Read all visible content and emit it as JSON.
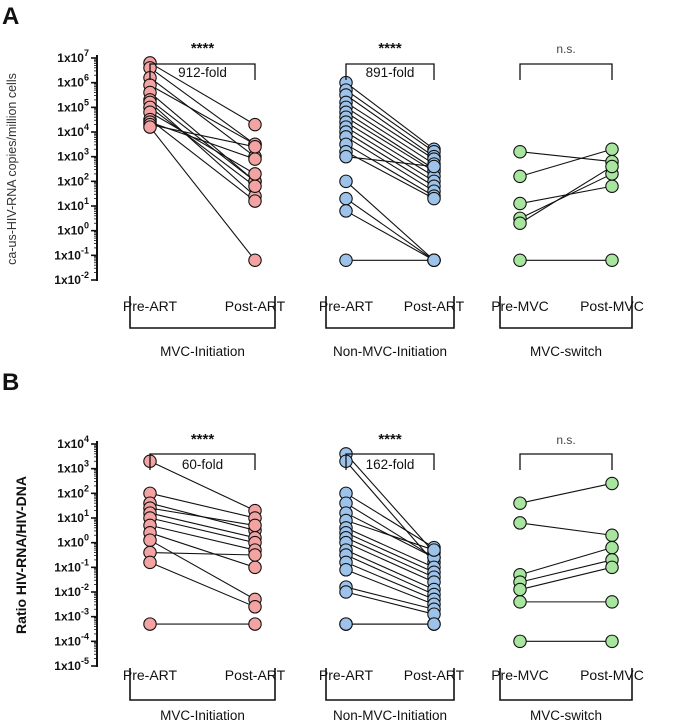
{
  "chart_data": [
    {
      "type": "scatter",
      "panel_letter": "A",
      "ylabel": "ca-us-HIV-RNA copies/million cells",
      "yscale": "log",
      "ylim_exp": [
        -2,
        7
      ],
      "y_ticks": [
        {
          "base": "1x10",
          "exp": "7"
        },
        {
          "base": "1x10",
          "exp": "6"
        },
        {
          "base": "1x10",
          "exp": "5"
        },
        {
          "base": "1x10",
          "exp": "4"
        },
        {
          "base": "1x10",
          "exp": "3"
        },
        {
          "base": "1x10",
          "exp": "2"
        },
        {
          "base": "1x10",
          "exp": "1"
        },
        {
          "base": "1x10",
          "exp": "0"
        },
        {
          "base": "1x10",
          "exp": "-1"
        },
        {
          "base": "1x10",
          "exp": "-2"
        }
      ],
      "groups": [
        {
          "name": "MVC-Initiation",
          "categories": [
            "Pre-ART",
            "Post-ART"
          ],
          "color": "#f4a3a3",
          "significance": "****",
          "fold": "912-fold",
          "pairs": [
            [
              6.8,
              4.3
            ],
            [
              6.6,
              3.5
            ],
            [
              6.2,
              3.0
            ],
            [
              5.9,
              3.5
            ],
            [
              5.6,
              2.0
            ],
            [
              5.3,
              2.0
            ],
            [
              5.2,
              1.4
            ],
            [
              5.0,
              1.8
            ],
            [
              4.8,
              2.3
            ],
            [
              4.5,
              1.2
            ],
            [
              4.4,
              2.9
            ],
            [
              4.3,
              3.4
            ],
            [
              4.2,
              -1.2
            ]
          ]
        },
        {
          "name": "Non-MVC-Initiation",
          "categories": [
            "Pre-ART",
            "Post-ART"
          ],
          "color": "#9dc3ea",
          "significance": "****",
          "fold": "891-fold",
          "pairs": [
            [
              6.0,
              3.3
            ],
            [
              5.7,
              3.2
            ],
            [
              5.5,
              3.0
            ],
            [
              5.2,
              2.9
            ],
            [
              5.0,
              2.7
            ],
            [
              4.8,
              2.5
            ],
            [
              4.6,
              2.4
            ],
            [
              4.4,
              2.2
            ],
            [
              4.2,
              2.0
            ],
            [
              4.0,
              1.8
            ],
            [
              3.8,
              1.6
            ],
            [
              3.5,
              1.4
            ],
            [
              3.2,
              1.3
            ],
            [
              3.0,
              2.6
            ],
            [
              2.0,
              -1.2
            ],
            [
              1.3,
              -1.2
            ],
            [
              0.8,
              -1.2
            ],
            [
              -1.2,
              -1.2
            ]
          ]
        },
        {
          "name": "MVC-switch",
          "categories": [
            "Pre-MVC",
            "Post-MVC"
          ],
          "color": "#a8e6a0",
          "significance": "n.s.",
          "fold": "",
          "pairs": [
            [
              3.2,
              2.8
            ],
            [
              2.2,
              3.3
            ],
            [
              1.1,
              1.8
            ],
            [
              0.5,
              2.3
            ],
            [
              0.3,
              2.6
            ],
            [
              -1.2,
              -1.2
            ]
          ]
        }
      ]
    },
    {
      "type": "scatter",
      "panel_letter": "B",
      "ylabel": "Ratio HIV-RNA/HIV-DNA",
      "yscale": "log",
      "ylim_exp": [
        -5,
        4
      ],
      "y_ticks": [
        {
          "base": "1x10",
          "exp": "4"
        },
        {
          "base": "1x10",
          "exp": "3"
        },
        {
          "base": "1x10",
          "exp": "2"
        },
        {
          "base": "1x10",
          "exp": "1"
        },
        {
          "base": "1x10",
          "exp": "0"
        },
        {
          "base": "1x10",
          "exp": "-1"
        },
        {
          "base": "1x10",
          "exp": "-2"
        },
        {
          "base": "1x10",
          "exp": "-3"
        },
        {
          "base": "1x10",
          "exp": "-4"
        },
        {
          "base": "1x10",
          "exp": "-5"
        }
      ],
      "groups": [
        {
          "name": "MVC-Initiation",
          "categories": [
            "Pre-ART",
            "Post-ART"
          ],
          "color": "#f4a3a3",
          "significance": "****",
          "fold": "60-fold",
          "pairs": [
            [
              3.3,
              1.3
            ],
            [
              2.0,
              1.0
            ],
            [
              1.6,
              0.5
            ],
            [
              1.4,
              0.7
            ],
            [
              1.2,
              0.2
            ],
            [
              1.0,
              0.0
            ],
            [
              0.7,
              -0.3
            ],
            [
              0.4,
              -1.0
            ],
            [
              0.1,
              -2.3
            ],
            [
              -0.4,
              -0.5
            ],
            [
              -0.8,
              -2.6
            ],
            [
              -3.3,
              -3.3
            ]
          ]
        },
        {
          "name": "Non-MVC-Initiation",
          "categories": [
            "Pre-ART",
            "Post-ART"
          ],
          "color": "#9dc3ea",
          "significance": "****",
          "fold": "162-fold",
          "pairs": [
            [
              3.6,
              -0.4
            ],
            [
              3.3,
              -0.8
            ],
            [
              2.0,
              -0.2
            ],
            [
              1.6,
              -0.6
            ],
            [
              1.2,
              -0.6
            ],
            [
              0.9,
              -0.3
            ],
            [
              0.6,
              -1.0
            ],
            [
              0.4,
              -1.2
            ],
            [
              0.2,
              -1.4
            ],
            [
              0.0,
              -1.6
            ],
            [
              -0.3,
              -1.9
            ],
            [
              -0.5,
              -2.1
            ],
            [
              -0.8,
              -2.3
            ],
            [
              -1.1,
              -2.5
            ],
            [
              -1.8,
              -2.7
            ],
            [
              -2.0,
              -2.9
            ],
            [
              -3.3,
              -3.3
            ],
            [
              -3.3,
              -3.3
            ]
          ]
        },
        {
          "name": "MVC-switch",
          "categories": [
            "Pre-MVC",
            "Post-MVC"
          ],
          "color": "#a8e6a0",
          "significance": "n.s.",
          "fold": "",
          "pairs": [
            [
              1.6,
              2.4
            ],
            [
              0.8,
              0.3
            ],
            [
              -1.3,
              -0.2
            ],
            [
              -1.6,
              -0.7
            ],
            [
              -1.9,
              -1.0
            ],
            [
              -2.4,
              -2.4
            ],
            [
              -4.0,
              -4.0
            ]
          ]
        }
      ]
    }
  ]
}
